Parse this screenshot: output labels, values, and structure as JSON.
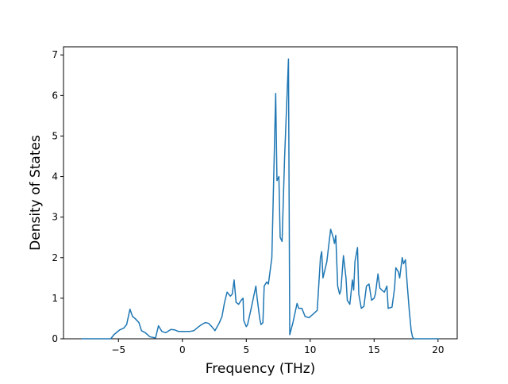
{
  "chart_data": {
    "type": "line",
    "xlabel": "Frequency (THz)",
    "ylabel": "Density of States",
    "x": [
      -7.9,
      -5.6,
      -5.36,
      -4.9,
      -4.6,
      -4.36,
      -4.1,
      -3.9,
      -3.7,
      -3.4,
      -3.2,
      -2.9,
      -2.55,
      -2.1,
      -1.87,
      -1.6,
      -1.3,
      -0.9,
      -0.6,
      -0.3,
      0.56,
      0.9,
      1.2,
      1.5,
      1.8,
      2.05,
      2.3,
      2.55,
      2.9,
      3.1,
      3.3,
      3.5,
      3.75,
      3.9,
      4.05,
      4.2,
      4.4,
      4.6,
      4.75,
      4.8,
      5.0,
      5.1,
      5.35,
      5.55,
      5.75,
      5.85,
      6.05,
      6.15,
      6.3,
      6.4,
      6.6,
      6.73,
      7.0,
      7.3,
      7.4,
      7.55,
      7.65,
      7.8,
      8.0,
      8.3,
      8.4,
      8.65,
      8.97,
      9.1,
      9.35,
      9.6,
      9.9,
      10.2,
      10.55,
      10.8,
      10.9,
      11.0,
      11.3,
      11.6,
      11.8,
      11.9,
      12.0,
      12.15,
      12.3,
      12.4,
      12.6,
      12.8,
      12.9,
      13.1,
      13.3,
      13.4,
      13.5,
      13.7,
      13.8,
      14.0,
      14.2,
      14.4,
      14.6,
      14.8,
      15.0,
      15.1,
      15.3,
      15.45,
      15.6,
      15.8,
      16.0,
      16.1,
      16.4,
      16.6,
      16.7,
      16.9,
      17.0,
      17.2,
      17.3,
      17.45,
      17.6,
      17.75,
      17.9,
      18.0,
      18.1,
      20.1
    ],
    "series": [
      {
        "color": "#1f77b4",
        "values": [
          0,
          0,
          0.1,
          0.22,
          0.26,
          0.35,
          0.73,
          0.55,
          0.5,
          0.4,
          0.2,
          0.15,
          0.05,
          0.02,
          0.32,
          0.18,
          0.15,
          0.23,
          0.22,
          0.18,
          0.18,
          0.2,
          0.28,
          0.35,
          0.4,
          0.38,
          0.3,
          0.2,
          0.4,
          0.55,
          0.9,
          1.15,
          1.05,
          1.1,
          1.45,
          0.9,
          0.85,
          0.95,
          1.0,
          0.45,
          0.3,
          0.35,
          0.7,
          1.0,
          1.3,
          1.0,
          0.5,
          0.35,
          0.4,
          1.3,
          1.4,
          1.35,
          2.0,
          6.05,
          3.9,
          4.0,
          2.5,
          2.4,
          4.5,
          6.9,
          0.1,
          0.4,
          0.87,
          0.75,
          0.75,
          0.55,
          0.52,
          0.6,
          0.7,
          2.0,
          2.15,
          1.5,
          1.9,
          2.7,
          2.5,
          2.35,
          2.55,
          1.3,
          1.1,
          1.2,
          2.05,
          1.5,
          0.95,
          0.85,
          1.45,
          1.2,
          1.9,
          2.25,
          1.1,
          0.75,
          0.8,
          1.3,
          1.35,
          0.95,
          1.0,
          1.1,
          1.6,
          1.25,
          1.2,
          1.15,
          1.3,
          0.75,
          0.78,
          1.25,
          1.75,
          1.65,
          1.5,
          2.0,
          1.85,
          1.95,
          1.3,
          0.7,
          0.2,
          0.05,
          0,
          0
        ]
      }
    ],
    "xlim": [
      -9.3,
      21.5
    ],
    "xticks": [
      {
        "value": -5,
        "label": "−5"
      },
      0,
      5,
      10,
      15,
      20
    ],
    "ylim": [
      0,
      7.2
    ],
    "yticks": [
      0,
      1,
      2,
      3,
      4,
      5,
      6,
      7
    ]
  }
}
